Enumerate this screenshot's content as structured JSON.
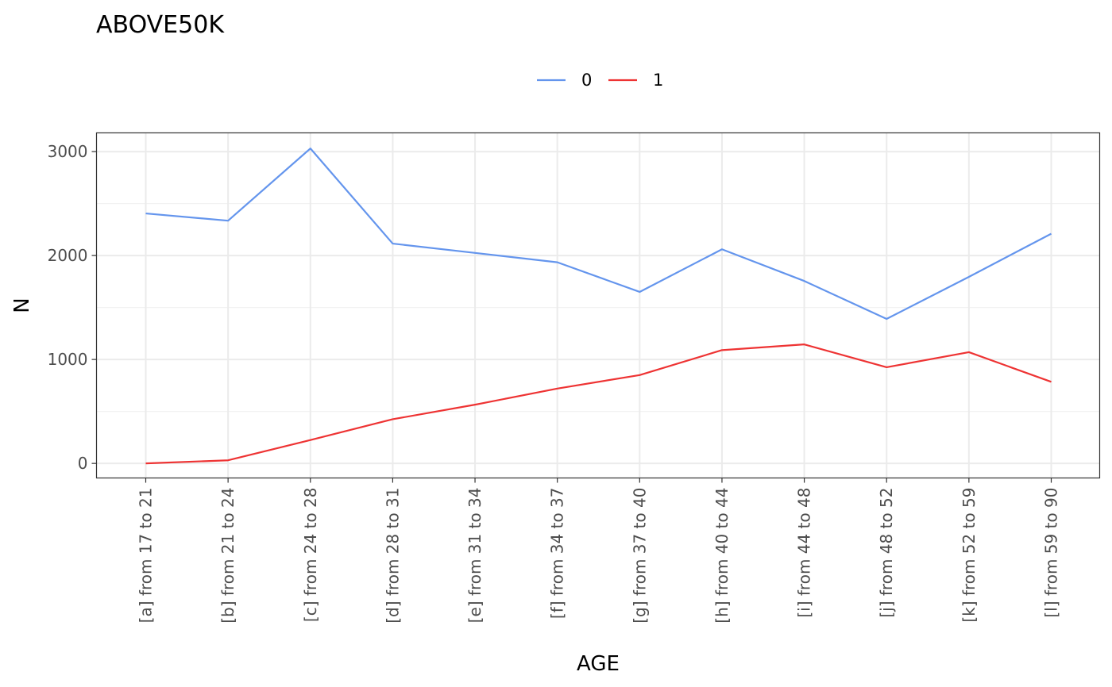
{
  "chart_data": {
    "type": "line",
    "title": "ABOVE50K",
    "xlabel": "AGE",
    "ylabel": "N",
    "categories": [
      "[a] from 17 to 21",
      "[b] from 21 to 24",
      "[c] from 24 to 28",
      "[d] from 28 to 31",
      "[e] from 31 to 34",
      "[f] from 34 to 37",
      "[g] from 37 to 40",
      "[h] from 40 to 44",
      "[i] from 44 to 48",
      "[j] from 48 to 52",
      "[k] from 52 to 59",
      "[l] from 59 to 90"
    ],
    "series": [
      {
        "name": "0",
        "color": "#6495ED",
        "values": [
          2405,
          2335,
          3030,
          2115,
          2025,
          1935,
          1650,
          2060,
          1755,
          1390,
          1795,
          2210
        ]
      },
      {
        "name": "1",
        "color": "#EE3333",
        "values": [
          0,
          30,
          225,
          425,
          565,
          720,
          850,
          1090,
          1145,
          925,
          1070,
          785
        ]
      }
    ],
    "yticks": [
      0,
      1000,
      2000,
      3000
    ],
    "ylim": [
      -140,
      3180
    ],
    "legend_position": "top",
    "grid": true
  }
}
